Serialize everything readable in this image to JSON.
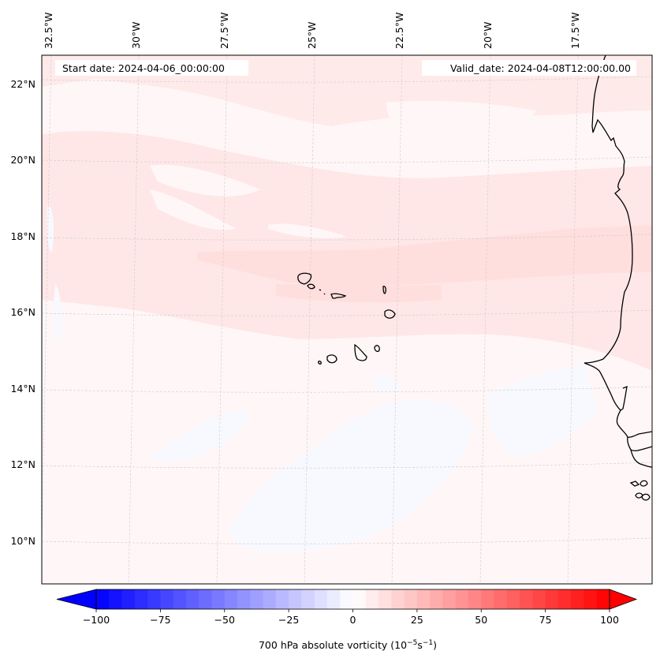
{
  "map": {
    "start_date_label": "Start date: 2024-04-06_00:00:00",
    "valid_date_label": "Valid_date: 2024-04-08T12:00:00.00",
    "lon_labels": [
      "32.5°W",
      "30°W",
      "27.5°W",
      "25°W",
      "22.5°W",
      "20°W",
      "17.5°W"
    ],
    "lat_labels": [
      "22°N",
      "20°N",
      "18°N",
      "16°N",
      "14°N",
      "12°N",
      "10°N"
    ],
    "extent": {
      "lon_min": -32.5,
      "lon_max": -16.5,
      "lat_min": 9,
      "lat_max": 22.7
    },
    "gridlines": true
  },
  "colorbar": {
    "label_main": "700 hPa absolute vorticity (10",
    "label_exp1": "−5",
    "label_mid": "s",
    "label_exp2": "−1",
    "label_end": ")",
    "ticks": [
      "−100",
      "−75",
      "−50",
      "−25",
      "0",
      "25",
      "50",
      "75",
      "100"
    ],
    "tick_values": [
      -100,
      -75,
      -50,
      -25,
      0,
      25,
      50,
      75,
      100
    ],
    "vmin": -100,
    "vmax": 100,
    "step": 5,
    "extend": "both",
    "colormap": "bwr",
    "low_color": "#0000ff",
    "mid_color": "#ffffff",
    "high_color": "#ff0000"
  },
  "chart_data": {
    "type": "heatmap",
    "title": "",
    "variable": "700 hPa absolute vorticity",
    "units": "10^-5 s^-1",
    "xlabel": "",
    "ylabel": "",
    "x_ticks": [
      "32.5°W",
      "30°W",
      "27.5°W",
      "25°W",
      "22.5°W",
      "20°W",
      "17.5°W"
    ],
    "y_ticks": [
      "22°N",
      "20°N",
      "18°N",
      "16°N",
      "14°N",
      "12°N",
      "10°N"
    ],
    "color_range": [
      -100,
      100
    ],
    "description": "Weak positive vorticity (about 0 to 10) across most of domain; bands of ~5-10 between 16-21°N; slightly negative (about -5 to 0) patches south of 14°N",
    "regions": [
      {
        "name": "northern band",
        "lat_range": [
          16,
          22
        ],
        "value_range": [
          0,
          10
        ]
      },
      {
        "name": "southern area",
        "lat_range": [
          9,
          15
        ],
        "value_range": [
          -5,
          5
        ]
      }
    ]
  }
}
